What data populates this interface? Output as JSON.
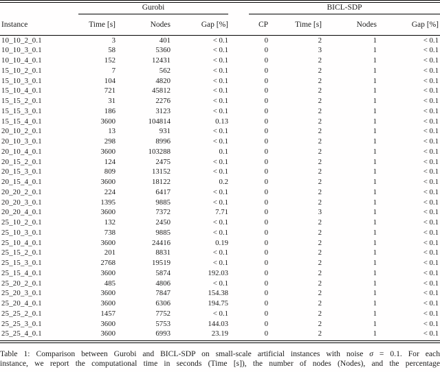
{
  "table": {
    "group_headers": {
      "gurobi": "Gurobi",
      "bicl_sdp": "BICL-SDP"
    },
    "columns": {
      "instance": "Instance",
      "g_time": "Time [s]",
      "g_nodes": "Nodes",
      "g_gap": "Gap [%]",
      "b_cp": "CP",
      "b_time": "Time [s]",
      "b_nodes": "Nodes",
      "b_gap": "Gap [%]"
    },
    "rows": [
      [
        "10_10_2_0.1",
        "3",
        "401",
        "< 0.1",
        "0",
        "2",
        "1",
        "< 0.1"
      ],
      [
        "10_10_3_0.1",
        "58",
        "5360",
        "< 0.1",
        "0",
        "3",
        "1",
        "< 0.1"
      ],
      [
        "10_10_4_0.1",
        "152",
        "12431",
        "< 0.1",
        "0",
        "2",
        "1",
        "< 0.1"
      ],
      [
        "15_10_2_0.1",
        "7",
        "562",
        "< 0.1",
        "0",
        "2",
        "1",
        "< 0.1"
      ],
      [
        "15_10_3_0.1",
        "104",
        "4820",
        "< 0.1",
        "0",
        "2",
        "1",
        "< 0.1"
      ],
      [
        "15_10_4_0.1",
        "721",
        "45812",
        "< 0.1",
        "0",
        "2",
        "1",
        "< 0.1"
      ],
      [
        "15_15_2_0.1",
        "31",
        "2276",
        "< 0.1",
        "0",
        "2",
        "1",
        "< 0.1"
      ],
      [
        "15_15_3_0.1",
        "186",
        "3123",
        "< 0.1",
        "0",
        "2",
        "1",
        "< 0.1"
      ],
      [
        "15_15_4_0.1",
        "3600",
        "104814",
        "0.13",
        "0",
        "2",
        "1",
        "< 0.1"
      ],
      [
        "20_10_2_0.1",
        "13",
        "931",
        "< 0.1",
        "0",
        "2",
        "1",
        "< 0.1"
      ],
      [
        "20_10_3_0.1",
        "298",
        "8996",
        "< 0.1",
        "0",
        "2",
        "1",
        "< 0.1"
      ],
      [
        "20_10_4_0.1",
        "3600",
        "103288",
        "0.1",
        "0",
        "2",
        "1",
        "< 0.1"
      ],
      [
        "20_15_2_0.1",
        "124",
        "2475",
        "< 0.1",
        "0",
        "2",
        "1",
        "< 0.1"
      ],
      [
        "20_15_3_0.1",
        "809",
        "13152",
        "< 0.1",
        "0",
        "2",
        "1",
        "< 0.1"
      ],
      [
        "20_15_4_0.1",
        "3600",
        "18122",
        "0.2",
        "0",
        "2",
        "1",
        "< 0.1"
      ],
      [
        "20_20_2_0.1",
        "224",
        "6417",
        "< 0.1",
        "0",
        "2",
        "1",
        "< 0.1"
      ],
      [
        "20_20_3_0.1",
        "1395",
        "9885",
        "< 0.1",
        "0",
        "2",
        "1",
        "< 0.1"
      ],
      [
        "20_20_4_0.1",
        "3600",
        "7372",
        "7.71",
        "0",
        "3",
        "1",
        "< 0.1"
      ],
      [
        "25_10_2_0.1",
        "132",
        "2450",
        "< 0.1",
        "0",
        "2",
        "1",
        "< 0.1"
      ],
      [
        "25_10_3_0.1",
        "738",
        "9885",
        "< 0.1",
        "0",
        "2",
        "1",
        "< 0.1"
      ],
      [
        "25_10_4_0.1",
        "3600",
        "24416",
        "0.19",
        "0",
        "2",
        "1",
        "< 0.1"
      ],
      [
        "25_15_2_0.1",
        "201",
        "8831",
        "< 0.1",
        "0",
        "2",
        "1",
        "< 0.1"
      ],
      [
        "25_15_3_0.1",
        "2768",
        "19519",
        "< 0.1",
        "0",
        "2",
        "1",
        "< 0.1"
      ],
      [
        "25_15_4_0.1",
        "3600",
        "5874",
        "192.03",
        "0",
        "2",
        "1",
        "< 0.1"
      ],
      [
        "25_20_2_0.1",
        "485",
        "4806",
        "< 0.1",
        "0",
        "2",
        "1",
        "< 0.1"
      ],
      [
        "25_20_3_0.1",
        "3600",
        "7847",
        "154.38",
        "0",
        "2",
        "1",
        "< 0.1"
      ],
      [
        "25_20_4_0.1",
        "3600",
        "6306",
        "194.75",
        "0",
        "2",
        "1",
        "< 0.1"
      ],
      [
        "25_25_2_0.1",
        "1457",
        "7752",
        "< 0.1",
        "0",
        "2",
        "1",
        "< 0.1"
      ],
      [
        "25_25_3_0.1",
        "3600",
        "5753",
        "144.03",
        "0",
        "2",
        "1",
        "< 0.1"
      ],
      [
        "25_25_4_0.1",
        "3600",
        "6993",
        "23.19",
        "0",
        "2",
        "1",
        "< 0.1"
      ]
    ]
  },
  "caption": {
    "line1_before_sigma": "Table 1: Comparison between Gurobi and BICL-SDP on small-scale artificial instances with noise ",
    "sigma": "σ",
    "line1_after_sigma": " = 0.1. For each",
    "line2": "instance, we report the computational time in seconds (Time [s]), the number of nodes (Nodes), and the percentage"
  }
}
